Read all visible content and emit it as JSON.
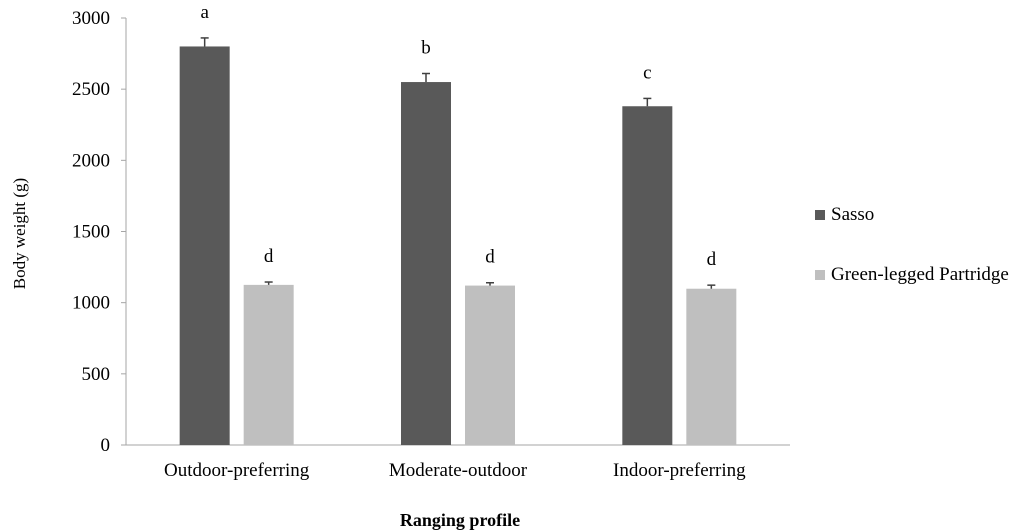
{
  "chart_data": {
    "type": "bar",
    "xlabel": "Ranging profile",
    "ylabel": "Body weight (g)",
    "categories": [
      "Outdoor-preferring",
      "Moderate-outdoor",
      "Indoor-preferring"
    ],
    "ylim": [
      0,
      3000
    ],
    "yticks": [
      "0",
      "500",
      "1000",
      "1500",
      "2000",
      "2500",
      "3000"
    ],
    "legend_position": "right",
    "grid": false,
    "series": [
      {
        "name": "Sasso",
        "color": "#595959",
        "values": [
          2800,
          2550,
          2380
        ],
        "errors": [
          60,
          60,
          55
        ],
        "labels": [
          "a",
          "b",
          "c"
        ]
      },
      {
        "name": "Green-legged Partridge",
        "color": "#bfbfbf",
        "values": [
          1125,
          1120,
          1098
        ],
        "errors": [
          20,
          20,
          25
        ],
        "labels": [
          "d",
          "d",
          "d"
        ]
      }
    ]
  }
}
